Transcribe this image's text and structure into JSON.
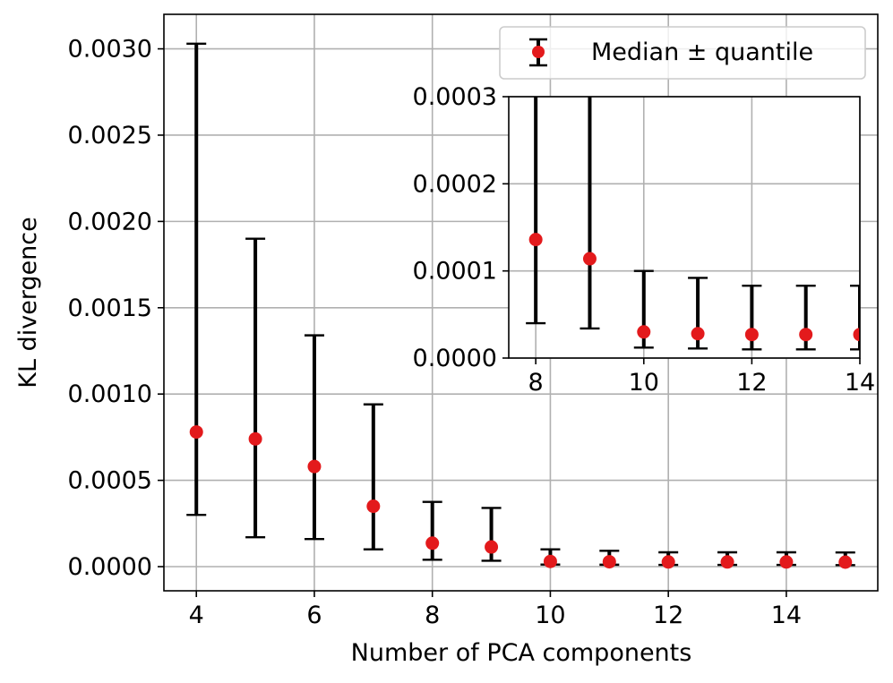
{
  "chart_data": [
    {
      "type": "scatter",
      "title": "",
      "xlabel": "Number of PCA components",
      "ylabel": "KL divergence",
      "xlim": [
        3.45,
        15.55
      ],
      "ylim": [
        -0.00014,
        0.0032
      ],
      "xticks": [
        4,
        6,
        8,
        10,
        12,
        14
      ],
      "xtick_labels": [
        "4",
        "6",
        "8",
        "10",
        "12",
        "14"
      ],
      "yticks": [
        0,
        0.0005,
        0.001,
        0.0015,
        0.002,
        0.0025,
        0.003
      ],
      "ytick_labels": [
        "0.0000",
        "0.0005",
        "0.0010",
        "0.0015",
        "0.0020",
        "0.0025",
        "0.0030"
      ],
      "grid": true,
      "legend": {
        "position": "top-right",
        "entries": [
          "Median ± quantile"
        ]
      },
      "series": [
        {
          "name": "Median ± quantile",
          "x": [
            4,
            5,
            6,
            7,
            8,
            9,
            10,
            11,
            12,
            13,
            14,
            15
          ],
          "y": [
            0.00078,
            0.00074,
            0.00058,
            0.00035,
            0.000136,
            0.000114,
            3e-05,
            2.8e-05,
            2.7e-05,
            2.7e-05,
            2.7e-05,
            2.6e-05
          ],
          "y_lower": [
            0.0003,
            0.00017,
            0.00016,
            0.0001,
            4e-05,
            3.4e-05,
            1.2e-05,
            1.1e-05,
            1e-05,
            1e-05,
            1e-05,
            9e-06
          ],
          "y_upper": [
            0.00303,
            0.0019,
            0.00134,
            0.00094,
            0.000375,
            0.00034,
            0.0001,
            9.2e-05,
            8.3e-05,
            8.3e-05,
            8.3e-05,
            8.2e-05
          ]
        }
      ],
      "colors": {
        "marker": "#e31a1c",
        "errorbar": "#000000",
        "grid": "#b0b0b0"
      }
    },
    {
      "type": "scatter",
      "title": "",
      "xlabel": "",
      "ylabel": "",
      "xlim": [
        7.5,
        14
      ],
      "ylim": [
        0,
        0.0003
      ],
      "xticks": [
        8,
        10,
        12,
        14
      ],
      "xtick_labels": [
        "8",
        "10",
        "12",
        "14"
      ],
      "yticks": [
        0,
        0.0001,
        0.0002,
        0.0003
      ],
      "ytick_labels": [
        "0.0000",
        "0.0001",
        "0.0002",
        "0.0003"
      ],
      "grid": true,
      "series": [
        {
          "name": "",
          "x": [
            8,
            9,
            10,
            11,
            12,
            13,
            14,
            15
          ],
          "y": [
            0.000136,
            0.000114,
            3e-05,
            2.8e-05,
            2.7e-05,
            2.7e-05,
            2.7e-05,
            2.6e-05
          ],
          "y_lower": [
            4e-05,
            3.4e-05,
            1.2e-05,
            1.1e-05,
            1e-05,
            1e-05,
            1e-05,
            9e-06
          ],
          "y_upper": [
            0.000375,
            0.00034,
            0.0001,
            9.2e-05,
            8.3e-05,
            8.3e-05,
            8.3e-05,
            8.2e-05
          ]
        }
      ],
      "colors": {
        "marker": "#e31a1c",
        "errorbar": "#000000",
        "grid": "#b0b0b0"
      }
    }
  ]
}
